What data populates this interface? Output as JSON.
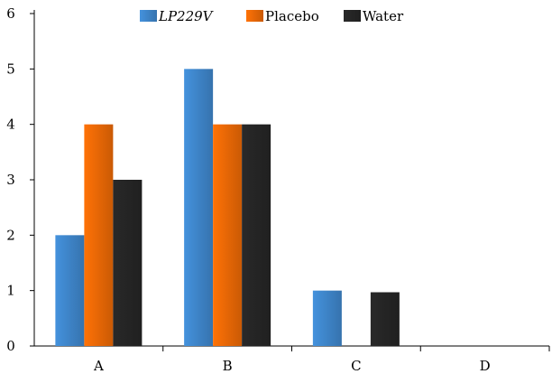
{
  "chart_data": {
    "type": "bar",
    "title": "",
    "xlabel": "",
    "ylabel": "",
    "categories": [
      "A",
      "B",
      "C",
      "D"
    ],
    "ylim": [
      0,
      6
    ],
    "yticks": [
      0,
      1,
      2,
      3,
      4,
      5,
      6
    ],
    "grid": false,
    "legend_position": "top-center",
    "series": [
      {
        "name": "LP229V",
        "values": [
          2,
          5,
          1,
          0
        ],
        "color": "#3f87cd",
        "italic": true
      },
      {
        "name": "Placebo",
        "values": [
          4,
          4,
          0,
          0
        ],
        "color": "#ee6a06",
        "italic": false
      },
      {
        "name": "Water",
        "values": [
          3,
          4,
          0.97,
          0
        ],
        "color": "#262626",
        "italic": false
      }
    ]
  }
}
